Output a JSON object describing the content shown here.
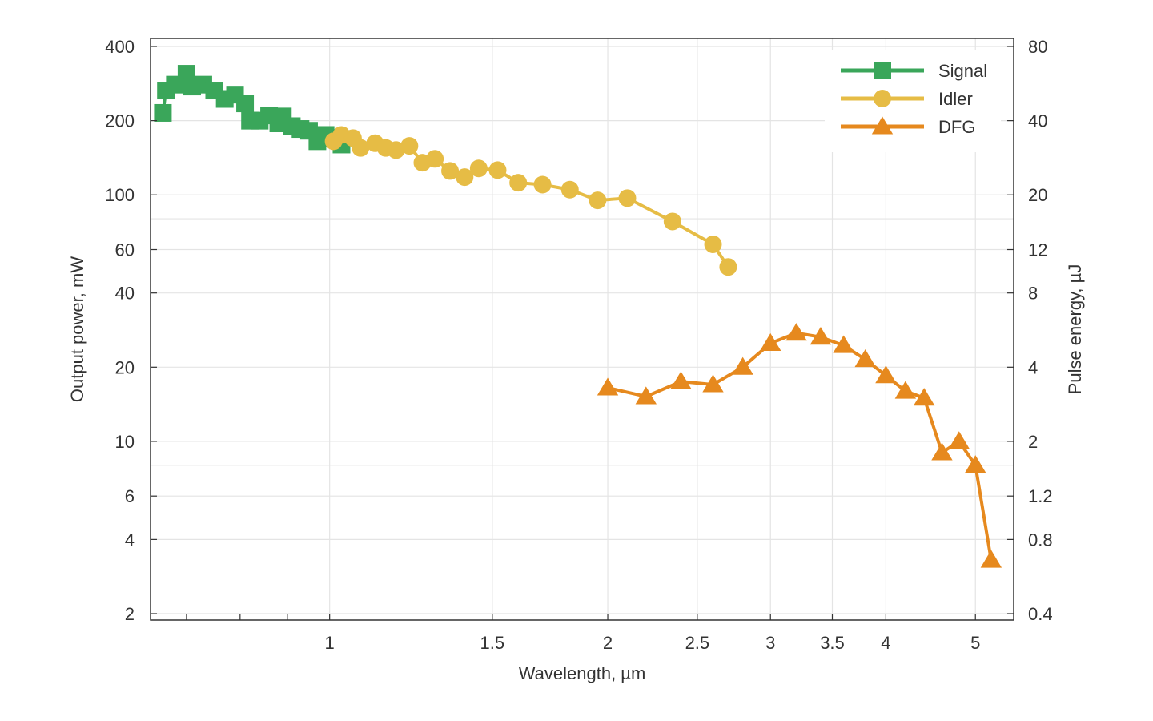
{
  "chart_data": {
    "type": "line",
    "title": "",
    "xlabel": "Wavelength, µm",
    "ylabel": "Output power, mW",
    "y2label": "Pulse energy, µJ",
    "xscale": "log",
    "yscale": "log",
    "xlim": [
      0.64,
      5.5
    ],
    "ylim": [
      2,
      400
    ],
    "y2lim": [
      0.4,
      80
    ],
    "x_ticks": [
      1,
      1.5,
      2,
      2.5,
      3,
      3.5,
      4,
      5
    ],
    "x_tick_labels": [
      "1",
      "1.5",
      "2",
      "2.5",
      "3",
      "3.5",
      "4",
      "5"
    ],
    "x_minor_ticks": [
      0.7,
      0.8,
      0.9
    ],
    "y_ticks": [
      2,
      4,
      6,
      10,
      20,
      40,
      60,
      100,
      200,
      400
    ],
    "y_tick_labels": [
      "2",
      "4",
      "6",
      "10",
      "20",
      "40",
      "60",
      "100",
      "200",
      "400"
    ],
    "y_minor_ticks": [
      8,
      80
    ],
    "y2_tick_labels": [
      "0.4",
      "0.8",
      "1.2",
      "2",
      "4",
      "8",
      "12",
      "20",
      "40",
      "80"
    ],
    "legend_position": "top-right",
    "grid": true,
    "series": [
      {
        "name": "Signal",
        "color": "#3aa65a",
        "marker": "square",
        "x": [
          0.66,
          0.665,
          0.68,
          0.7,
          0.71,
          0.73,
          0.75,
          0.77,
          0.79,
          0.81,
          0.82,
          0.84,
          0.86,
          0.88,
          0.89,
          0.91,
          0.93,
          0.95,
          0.97,
          0.99,
          1.0,
          1.03
        ],
        "y": [
          215,
          265,
          280,
          310,
          275,
          280,
          265,
          245,
          255,
          235,
          200,
          200,
          210,
          195,
          208,
          190,
          185,
          182,
          165,
          175,
          170,
          160
        ]
      },
      {
        "name": "Idler",
        "color": "#e6bc45",
        "marker": "circle",
        "x": [
          1.01,
          1.03,
          1.06,
          1.08,
          1.12,
          1.15,
          1.18,
          1.22,
          1.26,
          1.3,
          1.35,
          1.4,
          1.45,
          1.52,
          1.6,
          1.7,
          1.82,
          1.95,
          2.1,
          2.35,
          2.6,
          2.7
        ],
        "y": [
          165,
          175,
          170,
          155,
          162,
          155,
          152,
          158,
          135,
          140,
          125,
          118,
          128,
          126,
          112,
          110,
          105,
          95,
          97,
          78,
          63,
          51
        ]
      },
      {
        "name": "DFG",
        "color": "#e6891e",
        "marker": "triangle",
        "x": [
          2.0,
          2.2,
          2.4,
          2.6,
          2.8,
          3.0,
          3.2,
          3.4,
          3.6,
          3.8,
          4.0,
          4.2,
          4.4,
          4.6,
          4.8,
          5.0,
          5.2
        ],
        "y": [
          16.5,
          15.2,
          17.5,
          17.0,
          20.0,
          25.0,
          27.5,
          26.5,
          24.5,
          21.5,
          18.5,
          16.0,
          15.0,
          9.0,
          10.0,
          8.0,
          3.3
        ]
      }
    ]
  }
}
